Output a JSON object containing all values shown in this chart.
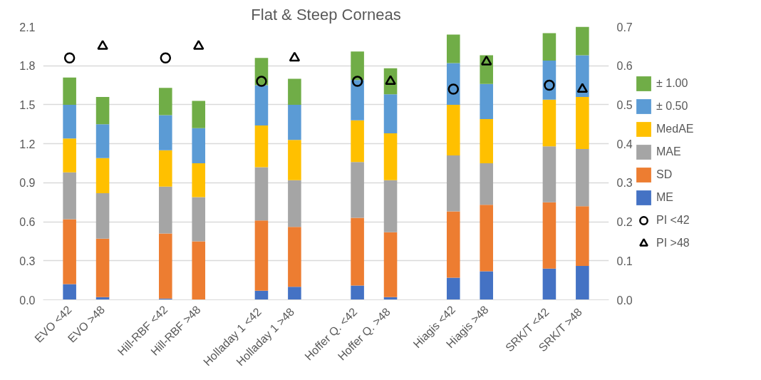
{
  "chart_data": {
    "type": "bar",
    "title": "Flat & Steep Corneas",
    "stacked": true,
    "categories": [
      "EVO <42",
      "EVO >48",
      "Hill-RBF <42",
      "Hill-RBF >48",
      "Holladay 1  <42",
      "Holladay 1  >48",
      "Hoffer Q.  <42",
      "Hoffer Q.  >48",
      "Hiagis <42",
      "Hiagis >48",
      "SRK/T  <42",
      "SRK/T  >48"
    ],
    "series": [
      {
        "name": "ME",
        "color": "#4472c4",
        "values": [
          0.12,
          0.02,
          0.01,
          0.0,
          0.07,
          0.1,
          0.11,
          0.02,
          0.17,
          0.22,
          0.24,
          0.26
        ]
      },
      {
        "name": "SD",
        "color": "#ed7d31",
        "values": [
          0.5,
          0.45,
          0.5,
          0.45,
          0.54,
          0.46,
          0.52,
          0.5,
          0.51,
          0.51,
          0.51,
          0.46
        ]
      },
      {
        "name": "MAE",
        "color": "#a5a5a5",
        "values": [
          0.36,
          0.35,
          0.36,
          0.34,
          0.41,
          0.36,
          0.43,
          0.4,
          0.43,
          0.32,
          0.43,
          0.44
        ]
      },
      {
        "name": "MedAE",
        "color": "#ffc000",
        "values": [
          0.26,
          0.27,
          0.28,
          0.26,
          0.32,
          0.31,
          0.32,
          0.36,
          0.39,
          0.34,
          0.36,
          0.4
        ]
      },
      {
        "name": "± 0.50",
        "color": "#5b9bd5",
        "values": [
          0.26,
          0.26,
          0.27,
          0.27,
          0.31,
          0.27,
          0.31,
          0.3,
          0.32,
          0.27,
          0.3,
          0.32
        ]
      },
      {
        "name": "± 1.00",
        "color": "#70ad47",
        "values": [
          0.21,
          0.21,
          0.21,
          0.21,
          0.21,
          0.2,
          0.22,
          0.2,
          0.22,
          0.22,
          0.21,
          0.22
        ]
      },
      {
        "name": "PI <42",
        "type": "scatter",
        "axis": "y2",
        "marker": "circle",
        "color": "#000000",
        "values": [
          0.62,
          null,
          0.62,
          null,
          0.56,
          null,
          0.56,
          null,
          0.54,
          null,
          0.55,
          null
        ]
      },
      {
        "name": "PI >48",
        "type": "scatter",
        "axis": "y2",
        "marker": "triangle",
        "color": "#000000",
        "values": [
          null,
          0.65,
          null,
          0.65,
          null,
          0.62,
          null,
          0.56,
          null,
          0.61,
          null,
          0.54
        ]
      }
    ],
    "ylim": [
      0,
      2.1
    ],
    "yticks": [
      {
        "value": 0,
        "label": "0.0"
      },
      0.3,
      0.6,
      0.9,
      1.2,
      1.5,
      1.8,
      2.1
    ],
    "y2lim": [
      0,
      0.7
    ],
    "y2ticks": [
      {
        "value": 0,
        "label": "0.0"
      },
      0.1,
      0.2,
      0.3,
      0.4,
      0.5,
      0.6,
      0.7
    ],
    "grid": "y",
    "legend": "right"
  }
}
